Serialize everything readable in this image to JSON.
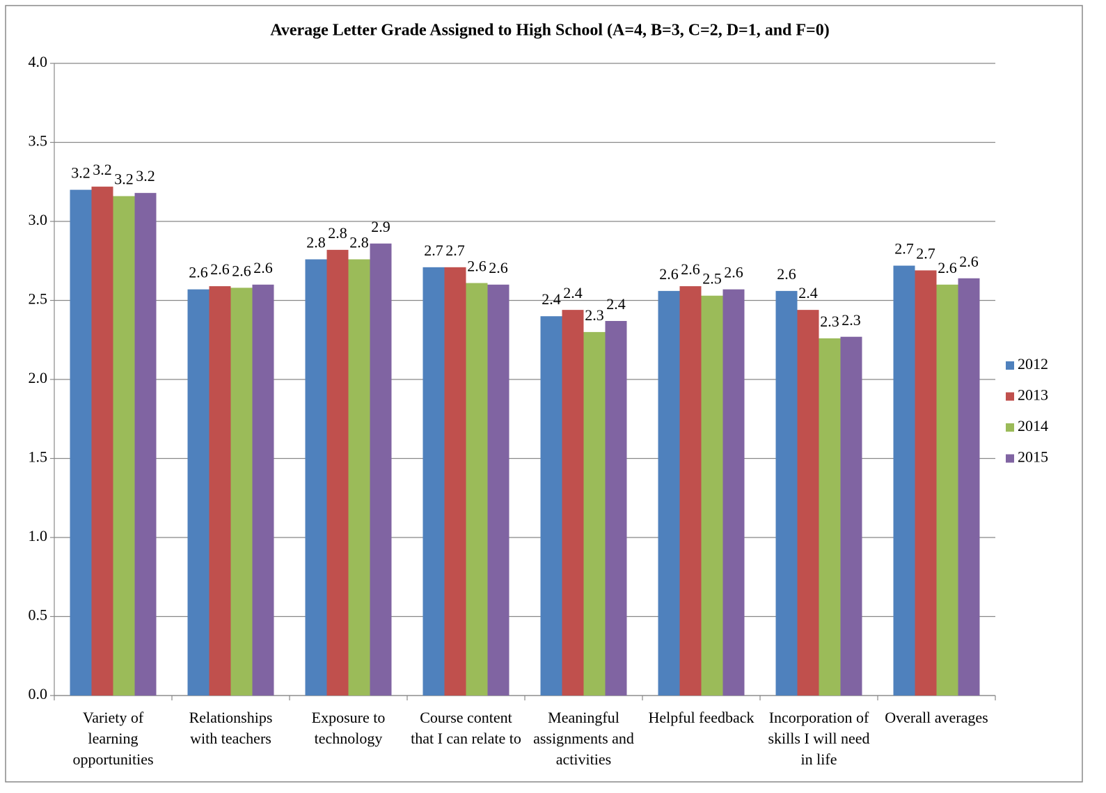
{
  "chart_data": {
    "type": "bar",
    "title": "Average Letter Grade Assigned to High School (A=4, B=3, C=2, D=1, and F=0)",
    "categories": [
      "Variety of learning opportunities",
      "Relationships with teachers",
      "Exposure to technology",
      "Course content that I can relate to",
      "Meaningful assignments and activities",
      "Helpful feedback",
      "Incorporation of skills I will need in life",
      "Overall averages"
    ],
    "series": [
      {
        "name": "2012",
        "color": "#4f81bd",
        "values": [
          3.2,
          2.57,
          2.76,
          2.71,
          2.4,
          2.56,
          2.56,
          2.72
        ],
        "value_labels": [
          "3.2",
          "2.6",
          "2.8",
          "2.7",
          "2.4",
          "2.6",
          "2.6",
          "2.7"
        ]
      },
      {
        "name": "2013",
        "color": "#c0504d",
        "values": [
          3.22,
          2.59,
          2.82,
          2.71,
          2.44,
          2.59,
          2.44,
          2.69
        ],
        "value_labels": [
          "3.2",
          "2.6",
          "2.8",
          "2.7",
          "2.4",
          "2.6",
          "2.4",
          "2.7"
        ]
      },
      {
        "name": "2014",
        "color": "#9bbb59",
        "values": [
          3.16,
          2.58,
          2.76,
          2.61,
          2.3,
          2.53,
          2.26,
          2.6
        ],
        "value_labels": [
          "3.2",
          "2.6",
          "2.8",
          "2.6",
          "2.3",
          "2.5",
          "2.3",
          "2.6"
        ]
      },
      {
        "name": "2015",
        "color": "#8064a2",
        "values": [
          3.18,
          2.6,
          2.86,
          2.6,
          2.37,
          2.57,
          2.27,
          2.64
        ],
        "value_labels": [
          "3.2",
          "2.6",
          "2.9",
          "2.6",
          "2.4",
          "2.6",
          "2.3",
          "2.6"
        ]
      }
    ],
    "ylim": [
      0,
      4
    ],
    "yticks": [
      {
        "value": 0,
        "label": "0.0"
      },
      0.5,
      {
        "value": 1,
        "label": "1.0"
      },
      1.5,
      {
        "value": 2,
        "label": "2.0"
      },
      2.5,
      {
        "value": 3,
        "label": "3.0"
      },
      3.5,
      {
        "value": 4,
        "label": "4.0"
      }
    ],
    "grid": true,
    "legend": "right"
  }
}
